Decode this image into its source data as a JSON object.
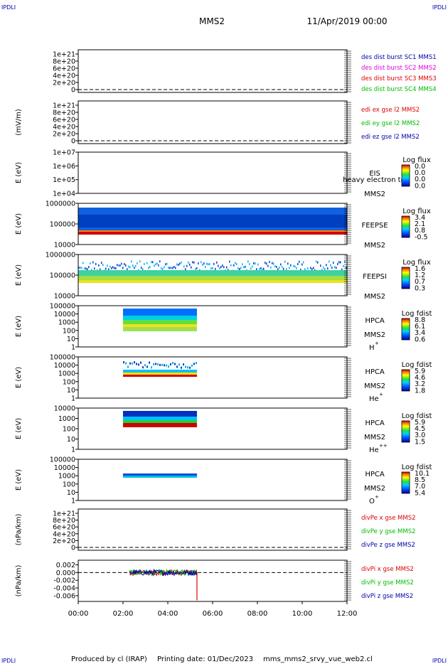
{
  "corner_labels": [
    "IPDLI",
    "IPDLI",
    "IPDLI",
    "IPDLI"
  ],
  "header": {
    "spacecraft": "MMS2",
    "date": "11/Apr/2019 00:00"
  },
  "footer": {
    "produced_by": "Produced by cl (IRAP)",
    "printing_date": "Printing date: 01/Dec/2023",
    "filename": "mms_mms2_srvy_vue_web2.cl"
  },
  "time_axis": {
    "ticks": [
      "00:00",
      "02:00",
      "04:00",
      "06:00",
      "08:00",
      "10:00",
      "12:00"
    ],
    "range_hours": [
      0,
      12
    ]
  },
  "colors": {
    "black": "#000000",
    "magenta": "#dd00dd",
    "red": "#dd0000",
    "green": "#00bb00",
    "blue": "#0000aa"
  },
  "chart_data": [
    {
      "type": "line",
      "title": "",
      "ylabel": "",
      "scale": "linear",
      "ytick_labels": [
        "1e+21",
        "8e+20",
        "6e+20",
        "4e+20",
        "2e+20",
        "0"
      ],
      "series": [
        {
          "name": "des dist burst SC1 MMS1",
          "color": "#0000aa",
          "values": []
        },
        {
          "name": "des dist burst SC2 MMS2",
          "color": "#dd00dd",
          "values": []
        },
        {
          "name": "des dist burst SC3 MMS3",
          "color": "#dd0000",
          "values": []
        },
        {
          "name": "des dist burst SC4 MMS4",
          "color": "#00bb00",
          "values": []
        }
      ],
      "zero_line": "dashed"
    },
    {
      "type": "line",
      "title": "",
      "ylabel": "(mV/m)",
      "scale": "linear",
      "ytick_labels": [
        "1e+21",
        "8e+20",
        "6e+20",
        "4e+20",
        "2e+20",
        "0"
      ],
      "series": [
        {
          "name": "edi ex gse l2 MMS2",
          "color": "#dd0000",
          "values": []
        },
        {
          "name": "edi ey gse l2 MMS2",
          "color": "#00bb00",
          "values": []
        },
        {
          "name": "edi ez gse l2 MMS2",
          "color": "#0000aa",
          "values": []
        }
      ],
      "zero_line": "dashed"
    },
    {
      "type": "heatmap",
      "ylabel": "E (eV)",
      "scale": "log",
      "ytick_labels": [
        "1e+07",
        "1e+06",
        "1e+05",
        "1e+04"
      ],
      "instrument": "EIS",
      "spacecraft": "MMS2",
      "overlay_text": "heavy electron to",
      "colorbar": {
        "title": "Log flux",
        "ticks": [
          "0.0",
          "0.0",
          "0.0",
          "0.0"
        ]
      },
      "data_time_range_hours": []
    },
    {
      "type": "heatmap",
      "ylabel": "E (eV)",
      "scale": "log",
      "ytick_labels": [
        "1000000",
        "100000",
        "10000"
      ],
      "instrument": "FEEPSE",
      "spacecraft": "MMS2",
      "colorbar": {
        "title": "Log flux",
        "ticks": [
          "3.4",
          "2.1",
          "0.8",
          "-0.5"
        ]
      },
      "data_time_range_hours": [
        0,
        12
      ]
    },
    {
      "type": "heatmap",
      "ylabel": "E (eV)",
      "scale": "log",
      "ytick_labels": [
        "1000000",
        "100000",
        "10000"
      ],
      "instrument": "FEEPSI",
      "spacecraft": "MMS2",
      "colorbar": {
        "title": "Log flux",
        "ticks": [
          "1.6",
          "1.2",
          "0.7",
          "0.3"
        ]
      },
      "data_time_range_hours": [
        0,
        12
      ]
    },
    {
      "type": "heatmap",
      "ylabel": "E (eV)",
      "scale": "log",
      "ytick_labels": [
        "100000",
        "10000",
        "1000",
        "100",
        "10",
        "1"
      ],
      "instrument": "HPCA",
      "spacecraft": "MMS2",
      "species": "H",
      "species_charge": "+",
      "colorbar": {
        "title": "Log fdist",
        "ticks": [
          "8.8",
          "6.1",
          "3.4",
          "0.6"
        ]
      },
      "data_time_range_hours": [
        2.0,
        5.3
      ]
    },
    {
      "type": "heatmap",
      "ylabel": "E (eV)",
      "scale": "log",
      "ytick_labels": [
        "100000",
        "10000",
        "1000",
        "100",
        "10",
        "1"
      ],
      "instrument": "HPCA",
      "spacecraft": "MMS2",
      "species": "He",
      "species_charge": "+",
      "colorbar": {
        "title": "Log fdist",
        "ticks": [
          "5.9",
          "4.6",
          "3.2",
          "1.8"
        ]
      },
      "data_time_range_hours": [
        2.0,
        5.3
      ]
    },
    {
      "type": "heatmap",
      "ylabel": "E (eV)",
      "scale": "log",
      "ytick_labels": [
        "10000",
        "1000",
        "100",
        "10",
        "1"
      ],
      "instrument": "HPCA",
      "spacecraft": "MMS2",
      "species": "He",
      "species_charge": "++",
      "colorbar": {
        "title": "Log fdist",
        "ticks": [
          "5.9",
          "4.5",
          "3.0",
          "1.5"
        ]
      },
      "data_time_range_hours": [
        2.0,
        5.3
      ]
    },
    {
      "type": "heatmap",
      "ylabel": "E (eV)",
      "scale": "log",
      "ytick_labels": [
        "100000",
        "10000",
        "1000",
        "100",
        "10",
        "1"
      ],
      "instrument": "HPCA",
      "spacecraft": "MMS2",
      "species": "O",
      "species_charge": "+",
      "colorbar": {
        "title": "Log fdist",
        "ticks": [
          "10.1",
          "8.5",
          "7.0",
          "5.4"
        ]
      },
      "data_time_range_hours": [
        2.0,
        5.3
      ]
    },
    {
      "type": "line",
      "ylabel": "(nPa/km)",
      "scale": "linear",
      "ytick_labels": [
        "1e+21",
        "8e+20",
        "6e+20",
        "4e+20",
        "2e+20",
        "0"
      ],
      "series": [
        {
          "name": "divPe x gse MMS2",
          "color": "#dd0000",
          "values": []
        },
        {
          "name": "divPe y gse MMS2",
          "color": "#00bb00",
          "values": []
        },
        {
          "name": "divPe z gse MMS2",
          "color": "#0000aa",
          "values": []
        }
      ],
      "zero_line": "dashed"
    },
    {
      "type": "line",
      "ylabel": "(nPa/km)",
      "scale": "linear",
      "ytick_labels": [
        "0.002",
        "0.000",
        "-0.002",
        "-0.004",
        "-0.006"
      ],
      "ylim": [
        -0.0075,
        0.0032
      ],
      "series": [
        {
          "name": "divPi x gse MMS2",
          "color": "#dd0000",
          "values": []
        },
        {
          "name": "divPi y gse MMS2",
          "color": "#00bb00",
          "values": []
        },
        {
          "name": "divPi z gse MMS2",
          "color": "#0000aa",
          "values": []
        }
      ],
      "data_time_range_hours": [
        2.3,
        5.3
      ],
      "min_value_near_end": -0.0072,
      "zero_line": "dashed"
    }
  ]
}
